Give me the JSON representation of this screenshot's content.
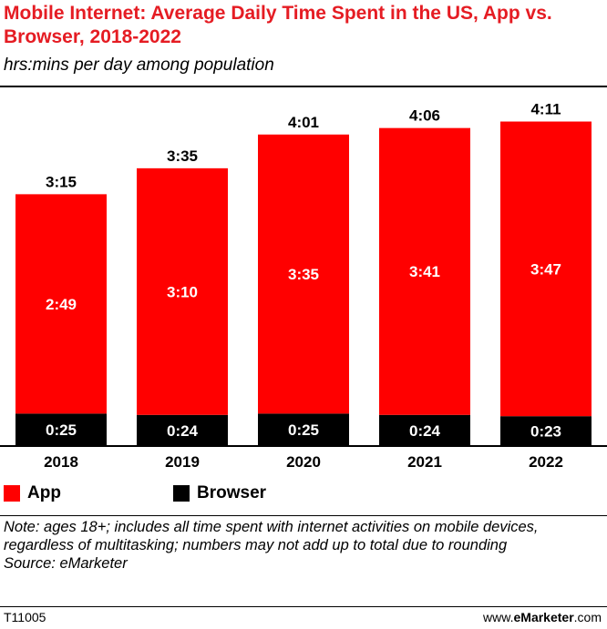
{
  "chart_data": {
    "type": "bar",
    "stacked": true,
    "title": "Mobile Internet: Average Daily Time Spent in the US, App vs. Browser, 2018-2022",
    "subtitle": "hrs:mins per day among population",
    "categories": [
      "2018",
      "2019",
      "2020",
      "2021",
      "2022"
    ],
    "series": [
      {
        "name": "Browser",
        "color": "#000000",
        "values": [
          25,
          24,
          25,
          24,
          23
        ],
        "labels": [
          "0:25",
          "0:24",
          "0:25",
          "0:24",
          "0:23"
        ]
      },
      {
        "name": "App",
        "color": "#ff0000",
        "values": [
          169,
          190,
          215,
          221,
          227
        ],
        "labels": [
          "2:49",
          "3:10",
          "3:35",
          "3:41",
          "3:47"
        ]
      }
    ],
    "totals": [
      195,
      215,
      241,
      246,
      251
    ],
    "total_labels": [
      "3:15",
      "3:35",
      "4:01",
      "4:06",
      "4:11"
    ],
    "ylim": [
      0,
      270
    ],
    "legend": [
      {
        "name": "App",
        "color": "#ff0000"
      },
      {
        "name": "Browser",
        "color": "#000000"
      }
    ],
    "legend_position": "bottom-left"
  },
  "note": "Note: ages 18+; includes all time spent with internet activities on mobile devices, regardless of multitasking; numbers may not add up to total due to rounding",
  "source": "Source: eMarketer",
  "footer": {
    "id": "T11005",
    "site_prefix": "www.",
    "site_brand": "eMarketer",
    "site_suffix": ".com"
  }
}
